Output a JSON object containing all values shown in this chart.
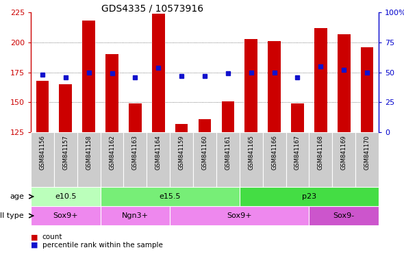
{
  "title": "GDS4335 / 10573916",
  "samples": [
    "GSM841156",
    "GSM841157",
    "GSM841158",
    "GSM841162",
    "GSM841163",
    "GSM841164",
    "GSM841159",
    "GSM841160",
    "GSM841161",
    "GSM841165",
    "GSM841166",
    "GSM841167",
    "GSM841168",
    "GSM841169",
    "GSM841170"
  ],
  "counts": [
    168,
    165,
    218,
    190,
    149,
    224,
    132,
    136,
    151,
    203,
    201,
    149,
    212,
    207,
    196
  ],
  "percentiles": [
    48,
    46,
    50,
    49,
    46,
    54,
    47,
    47,
    49,
    50,
    50,
    46,
    55,
    52,
    50
  ],
  "ylim_left": [
    125,
    225
  ],
  "ylim_right": [
    0,
    100
  ],
  "yticks_left": [
    125,
    150,
    175,
    200,
    225
  ],
  "yticks_right": [
    0,
    25,
    50,
    75,
    100
  ],
  "bar_color": "#cc0000",
  "dot_color": "#1111cc",
  "grid_color": "#555555",
  "age_groups": [
    {
      "label": "e10.5",
      "start": 0,
      "end": 3,
      "color": "#bbffbb"
    },
    {
      "label": "e15.5",
      "start": 3,
      "end": 9,
      "color": "#77ee77"
    },
    {
      "label": "p23",
      "start": 9,
      "end": 15,
      "color": "#44dd44"
    }
  ],
  "cell_groups": [
    {
      "label": "Sox9+",
      "start": 0,
      "end": 3,
      "color": "#ee88ee"
    },
    {
      "label": "Ngn3+",
      "start": 3,
      "end": 6,
      "color": "#ee88ee"
    },
    {
      "label": "Sox9+",
      "start": 6,
      "end": 12,
      "color": "#ee88ee"
    },
    {
      "label": "Sox9-",
      "start": 12,
      "end": 15,
      "color": "#cc55cc"
    }
  ],
  "left_color": "#cc0000",
  "right_color": "#0000cc",
  "sample_box_color": "#cccccc",
  "figsize": [
    5.9,
    3.84
  ],
  "dpi": 100
}
